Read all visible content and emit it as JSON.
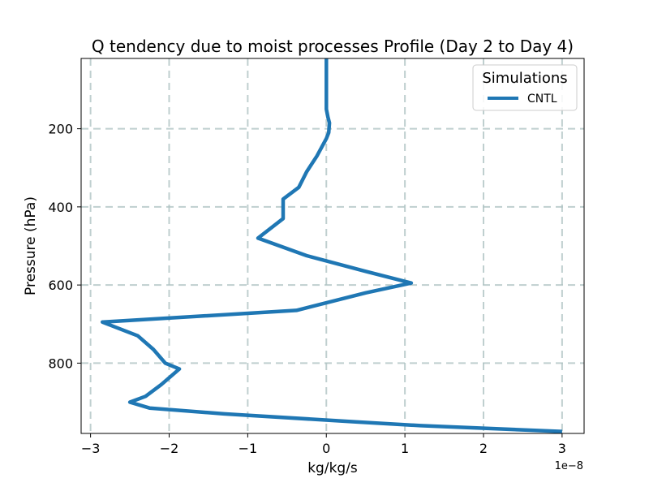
{
  "chart_data": {
    "type": "line",
    "title": "Q tendency due to moist processes Profile (Day 2 to Day 4)",
    "xlabel": "kg/kg/s",
    "ylabel": "Pressure (hPa)",
    "x_offset_label": "1e−8",
    "x_scale_factor": 1e-08,
    "xlim": [
      -3.12,
      3.28
    ],
    "ylim": [
      980,
      20
    ],
    "y_inverted": true,
    "xticks": [
      -3,
      -2,
      -1,
      0,
      1,
      2,
      3
    ],
    "xtick_labels": [
      "−3",
      "−2",
      "−1",
      "0",
      "1",
      "2",
      "3"
    ],
    "yticks": [
      200,
      400,
      600,
      800
    ],
    "ytick_labels": [
      "200",
      "400",
      "600",
      "800"
    ],
    "grid": true,
    "legend": {
      "title": "Simulations",
      "placement": "top-right"
    },
    "series": [
      {
        "name": "CNTL",
        "color": "#1f77b4",
        "x": [
          0.0,
          0.0,
          0.0,
          0.02,
          0.04,
          0.03,
          0.0,
          -0.12,
          -0.25,
          -0.35,
          -0.55,
          -0.55,
          -0.87,
          -0.25,
          0.5,
          1.08,
          0.5,
          -0.38,
          -2.85,
          -2.4,
          -2.2,
          -2.05,
          -1.87,
          -2.1,
          -2.3,
          -2.5,
          -2.25,
          -1.3,
          0.35,
          1.2,
          3.0
        ],
        "y": [
          20,
          100,
          150,
          170,
          185,
          210,
          225,
          270,
          310,
          350,
          380,
          430,
          480,
          525,
          565,
          595,
          620,
          665,
          695,
          730,
          765,
          800,
          815,
          855,
          885,
          900,
          915,
          930,
          950,
          960,
          975
        ]
      }
    ]
  }
}
